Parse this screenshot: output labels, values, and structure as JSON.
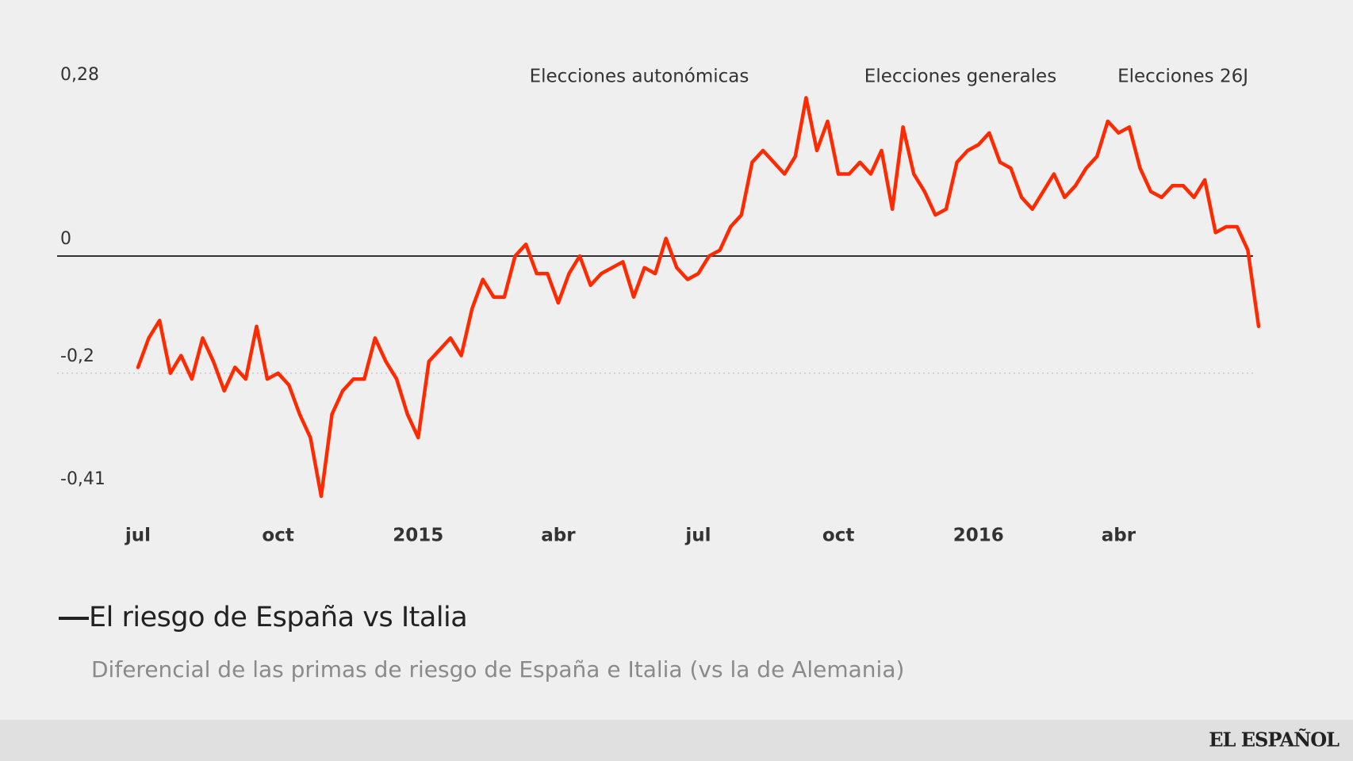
{
  "chart_data": {
    "type": "line",
    "subtitle": "Diferencial de las primas de riesgo de España e Italia (vs la de Alemania)",
    "annotations": [
      "Elecciones autonómicas",
      "Elecciones generales",
      "Elecciones 26J"
    ],
    "categories": [
      "jul",
      null,
      null,
      null,
      null,
      null,
      null,
      null,
      null,
      null,
      null,
      null,
      null,
      "oct",
      null,
      null,
      null,
      null,
      null,
      null,
      null,
      null,
      null,
      null,
      null,
      null,
      "2015",
      null,
      null,
      null,
      null,
      null,
      null,
      null,
      null,
      null,
      null,
      null,
      null,
      "abr",
      null,
      null,
      null,
      null,
      null,
      null,
      null,
      null,
      null,
      null,
      null,
      null,
      "jul",
      null,
      null,
      null,
      null,
      null,
      null,
      null,
      null,
      null,
      null,
      null,
      null,
      "oct",
      null,
      null,
      null,
      null,
      null,
      null,
      null,
      null,
      null,
      null,
      null,
      null,
      "2016",
      null,
      null,
      null,
      null,
      null,
      null,
      null,
      null,
      null,
      null,
      null,
      null,
      "abr",
      null,
      null,
      null,
      null,
      null,
      null,
      null,
      null,
      null,
      null,
      null,
      null,
      null
    ],
    "series": [
      {
        "name": "El riesgo de España vs Italia",
        "color": "#ff2a00",
        "values": [
          -0.19,
          -0.14,
          -0.11,
          -0.2,
          -0.17,
          -0.21,
          -0.14,
          -0.18,
          -0.23,
          -0.19,
          -0.21,
          -0.12,
          -0.21,
          -0.2,
          -0.22,
          -0.27,
          -0.31,
          -0.41,
          -0.27,
          -0.23,
          -0.21,
          -0.21,
          -0.14,
          -0.18,
          -0.21,
          -0.27,
          -0.31,
          -0.18,
          -0.16,
          -0.14,
          -0.17,
          -0.09,
          -0.04,
          -0.07,
          -0.07,
          0,
          0.02,
          -0.03,
          -0.03,
          -0.08,
          -0.03,
          0,
          -0.05,
          -0.03,
          -0.02,
          -0.01,
          -0.07,
          -0.02,
          -0.03,
          0.03,
          -0.02,
          -0.04,
          -0.03,
          0,
          0.01,
          0.05,
          0.07,
          0.16,
          0.18,
          0.16,
          0.14,
          0.17,
          0.27,
          0.18,
          0.23,
          0.14,
          0.14,
          0.16,
          0.14,
          0.18,
          0.08,
          0.22,
          0.14,
          0.11,
          0.07,
          0.08,
          0.16,
          0.18,
          0.19,
          0.21,
          0.16,
          0.15,
          0.1,
          0.08,
          0.11,
          0.14,
          0.1,
          0.12,
          0.15,
          0.17,
          0.23,
          0.21,
          0.22,
          0.15,
          0.11,
          0.1,
          0.12,
          0.12,
          0.1,
          0.13,
          0.04,
          0.05,
          0.05,
          0.01,
          -0.12
        ]
      }
    ],
    "ylim": [
      -0.41,
      0.28
    ],
    "yticks": [
      {
        "value": -0.41,
        "label": "-0,41"
      },
      {
        "value": -0.2,
        "label": "-0,2"
      },
      0,
      {
        "value": 0.28,
        "label": "0,28"
      }
    ],
    "grid": true
  },
  "footer": {
    "brand": "EL ESPAÑOL"
  }
}
